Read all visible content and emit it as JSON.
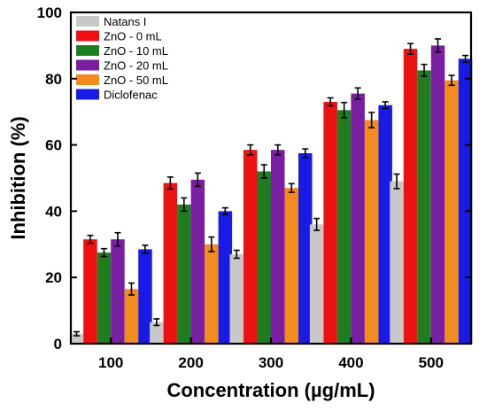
{
  "chart_data": {
    "type": "bar",
    "title": "",
    "xlabel": "Concentration (µg/mL)",
    "ylabel": "Inhibition (%)",
    "ylim": [
      0,
      100
    ],
    "yticks": [
      "0",
      "20",
      "40",
      "60",
      "80",
      "100"
    ],
    "categories": [
      "100",
      "200",
      "300",
      "400",
      "500"
    ],
    "legend_position": "top-left",
    "grid": false,
    "series": [
      {
        "name": "Natans I",
        "color": "#c8c8c8",
        "values": [
          3,
          6.5,
          27,
          36,
          49
        ],
        "errors": [
          0.6,
          1,
          1.2,
          1.8,
          2.2
        ]
      },
      {
        "name": "ZnO - 0 mL",
        "color": "#ee1111",
        "values": [
          31.5,
          48.5,
          58.5,
          73,
          89
        ],
        "errors": [
          1.2,
          1.8,
          1.5,
          1.2,
          1.6
        ]
      },
      {
        "name": "ZnO - 10 mL",
        "color": "#1e7d1e",
        "values": [
          27.5,
          42,
          52,
          70.5,
          82.5
        ],
        "errors": [
          1.2,
          2,
          2,
          2.3,
          1.8
        ]
      },
      {
        "name": "ZnO - 20 mL",
        "color": "#7b1fa2",
        "values": [
          31.5,
          49.5,
          58.5,
          75.5,
          90
        ],
        "errors": [
          2,
          2,
          1.5,
          1.7,
          2
        ]
      },
      {
        "name": "ZnO - 50 mL",
        "color": "#f28c1e",
        "values": [
          16.5,
          30,
          47,
          67.5,
          79.5
        ],
        "errors": [
          1.8,
          2.2,
          1.3,
          2.3,
          1.5
        ]
      },
      {
        "name": "Diclofenac",
        "color": "#1a1ae6",
        "values": [
          28.5,
          40,
          57.5,
          72,
          86
        ],
        "errors": [
          1.2,
          1,
          1.3,
          1,
          1
        ]
      }
    ]
  }
}
